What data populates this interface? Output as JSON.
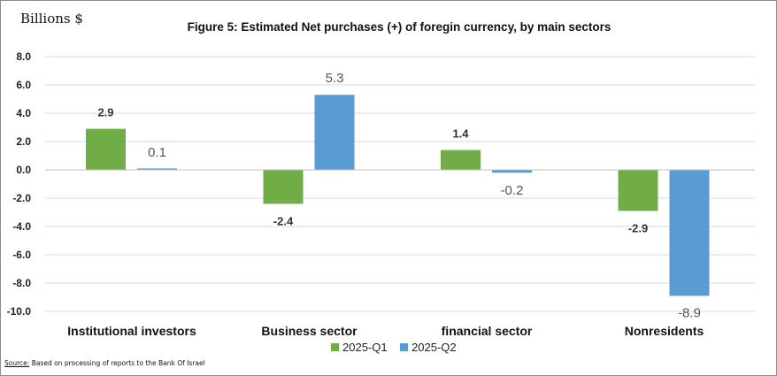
{
  "unit_label": "Billions $",
  "source": {
    "label": "Source:",
    "text": "Based on processing  of reports  to the Bank Of Israel"
  },
  "chart_data": {
    "type": "bar",
    "title": "Figure 5: Estimated Net purchases (+) of foregin currency, by main sectors",
    "categories": [
      "Institutional investors",
      "Business sector",
      "financial sector",
      "Nonresidents"
    ],
    "series": [
      {
        "name": "2025-Q1",
        "values": [
          2.9,
          -2.4,
          1.4,
          -2.9
        ],
        "color": "#70ad47",
        "labels": [
          "2.9",
          "-2.4",
          "1.4",
          "-2.9"
        ]
      },
      {
        "name": "2025-Q2",
        "values": [
          0.1,
          5.3,
          -0.2,
          -8.9
        ],
        "color": "#5b9bd5",
        "labels": [
          "0.1",
          "5.3",
          "-0.2",
          "-8.9"
        ]
      }
    ],
    "ylim": [
      -10,
      8
    ],
    "yticks": [
      "8.0",
      "6.0",
      "4.0",
      "2.0",
      "0.0",
      "-2.0",
      "-4.0",
      "-6.0",
      "-8.0",
      "-10.0"
    ],
    "grid": true,
    "legend": "bottom"
  }
}
